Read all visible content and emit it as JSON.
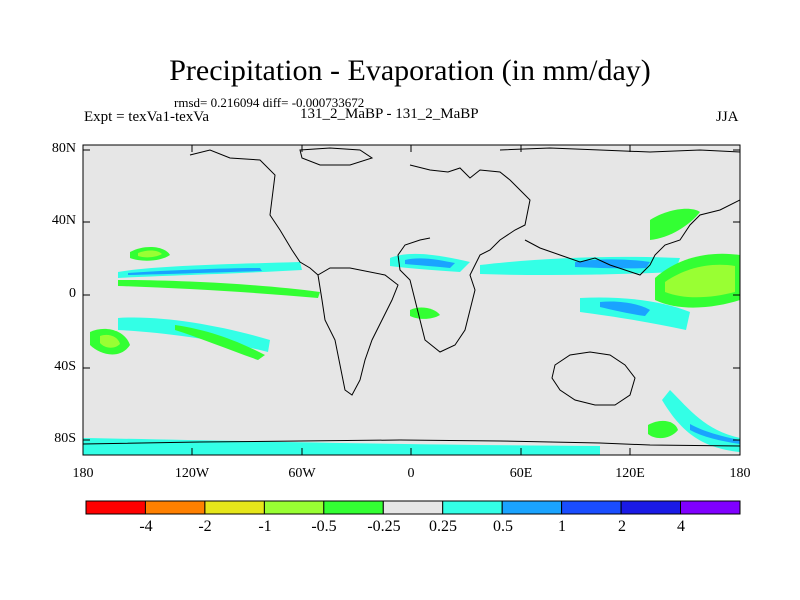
{
  "header": {
    "title": "Precipitation - Evaporation (in mm/day)",
    "stats": "rmsd= 0.216094 diff= -0.000733672",
    "expt": "Expt = texVa1-texVa",
    "case": "131_2_MaBP - 131_2_MaBP",
    "season": "JJA"
  },
  "axes": {
    "y_ticks": [
      "80N",
      "40N",
      "0",
      "40S",
      "80S"
    ],
    "x_ticks": [
      "180",
      "120W",
      "60W",
      "0",
      "60E",
      "120E",
      "180"
    ]
  },
  "colorbar": {
    "labels": [
      "-4",
      "-2",
      "-1",
      "-0.5",
      "-0.25",
      "0.25",
      "0.5",
      "1",
      "2",
      "4"
    ],
    "colors": [
      "#ff0000",
      "#ff8000",
      "#e6e61a",
      "#99ff33",
      "#33ff33",
      "#e6e6e6",
      "#33ffe6",
      "#1aa3ff",
      "#1a4dff",
      "#1a1ae6",
      "#8000ff"
    ]
  },
  "chart_data": {
    "type": "heatmap",
    "title": "Precipitation - Evaporation (in mm/day)",
    "xlim": [
      -180,
      180
    ],
    "ylim": [
      -90,
      90
    ],
    "levels": [
      -4,
      -2,
      -1,
      -0.5,
      -0.25,
      0.25,
      0.5,
      1,
      2,
      4
    ],
    "background_color": "#e6e6e6"
  }
}
